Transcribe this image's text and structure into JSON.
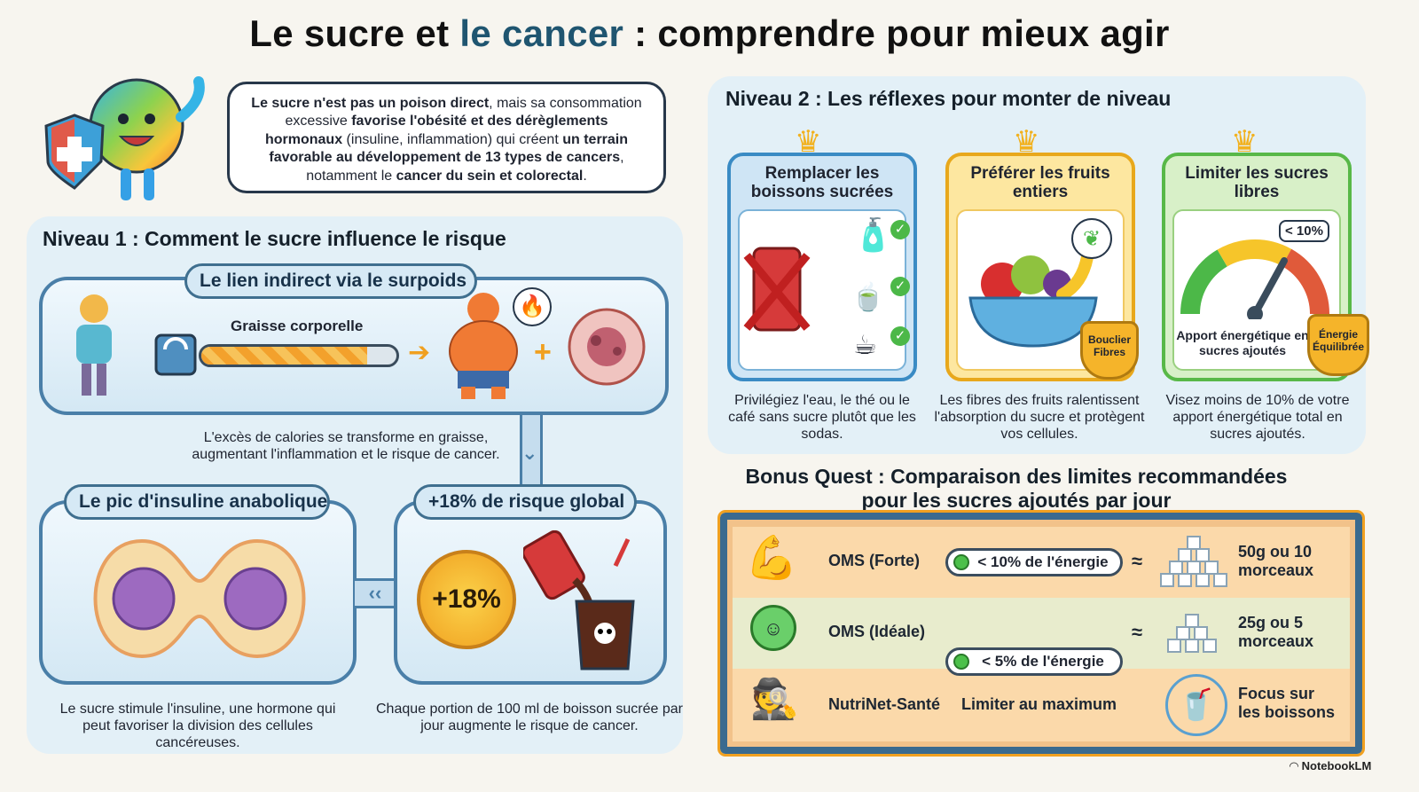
{
  "title": {
    "part1": "Le sucre et ",
    "part2": "le cancer",
    "part3": " : comprendre pour mieux agir"
  },
  "intro": {
    "t1": "Le sucre n'est pas un poison direct",
    "t2": ", mais sa consommation excessive ",
    "t3": "favorise l'obésité et des dérèglements hormonaux",
    "t4": " (insuline, inflammation) qui créent ",
    "t5": "un terrain favorable au développement de 13 types de cancers",
    "t6": ", notamment le ",
    "t7": "cancer du sein et colorectal",
    "t8": "."
  },
  "level1": {
    "title": "Niveau 1 : Comment le sucre influence le risque",
    "link": {
      "label": "Le lien indirect via le surpoids",
      "bar_label": "Graisse corporelle",
      "fat_level": 0.85,
      "caption": "L'excès de calories se transforme en graisse, augmentant l'inflammation et le risque de cancer."
    },
    "insulin": {
      "label": "Le pic d'insuline anabolique",
      "caption": "Le sucre stimule l'insuline, une hormone qui peut favoriser la division des cellules cancéreuses."
    },
    "risk": {
      "label": "+18% de risque global",
      "badge": "+18%",
      "caption": "Chaque portion de 100 ml de boisson sucrée par jour augmente le risque de cancer."
    }
  },
  "level2": {
    "title": "Niveau 2 : Les réflexes pour monter de niveau",
    "cards": [
      {
        "head": "Remplacer les boissons sucrées",
        "caption": "Privilégiez l'eau, le thé ou le café sans sucre plutôt que les sodas."
      },
      {
        "head": "Préférer les fruits entiers",
        "badge": "Bouclier Fibres",
        "caption": "Les fibres des fruits ralentissent l'absorption du sucre et protègent vos cellules."
      },
      {
        "head": "Limiter les sucres libres",
        "gauge_tag": "< 10%",
        "gauge_label": "Apport énergétique en sucres ajoutés",
        "badge": "Énergie Équilibrée",
        "caption": "Visez moins de 10% de votre apport énergétique total en sucres ajoutés."
      }
    ]
  },
  "bonus": {
    "title_line1": "Bonus Quest : Comparaison des limites recommandées",
    "title_line2": "pour les sucres ajoutés par jour",
    "rows": [
      {
        "name": "OMS (Forte)",
        "limit": "< 10% de l'énergie",
        "approx": "≈",
        "amount": "50g ou 10 morceaux"
      },
      {
        "name": "OMS (Idéale)",
        "limit": "< 5% de l'énergie",
        "approx": "≈",
        "amount": "25g ou 5 morceaux"
      },
      {
        "name": "NutriNet-Santé",
        "limit": "Limiter au maximum",
        "amount": "Focus sur les boissons"
      }
    ]
  },
  "brand": "NotebookLM"
}
